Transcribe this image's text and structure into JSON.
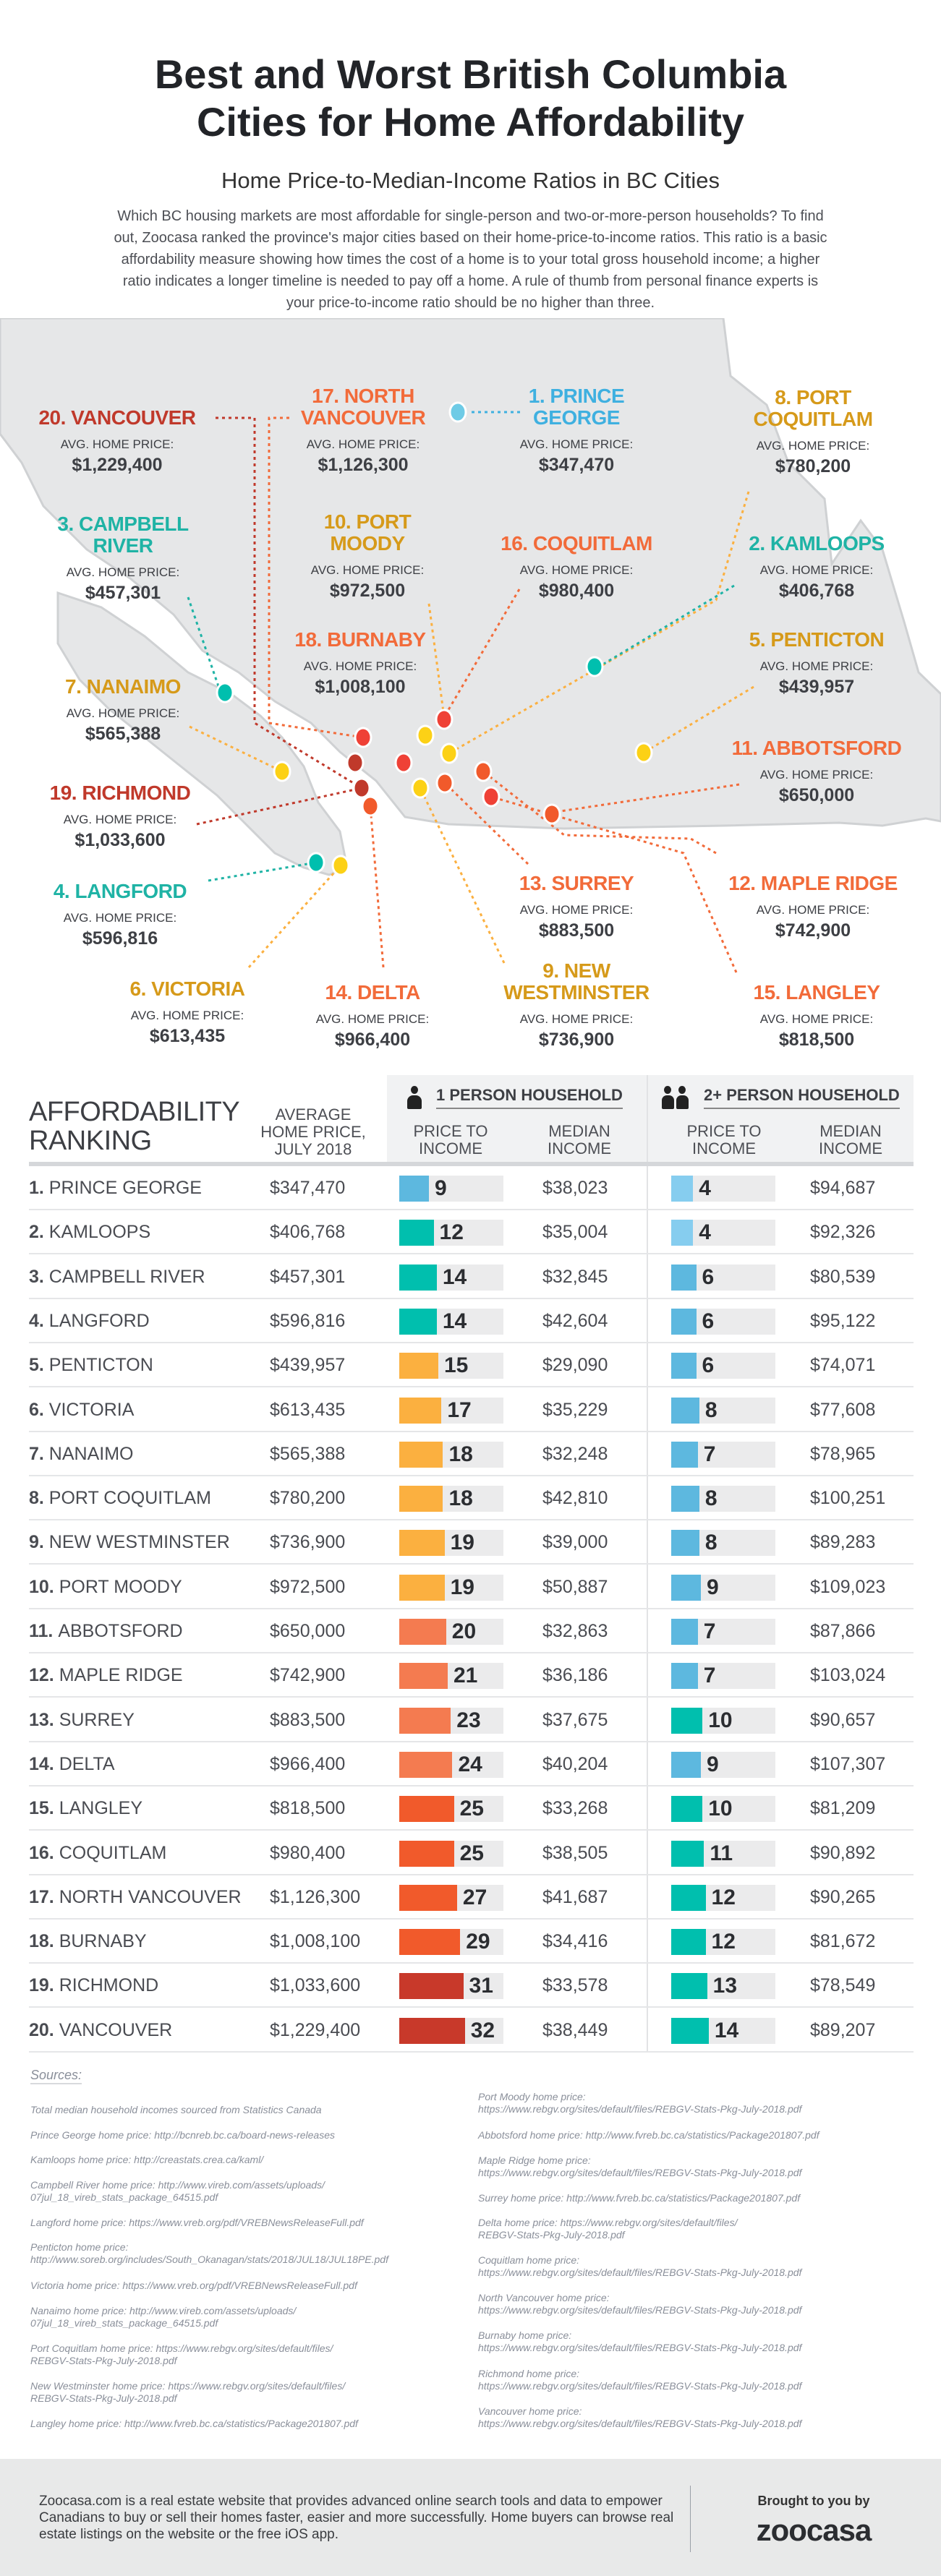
{
  "header": {
    "title_line1": "Best and Worst British Columbia",
    "title_line2": "Cities for Home Affordability",
    "subtitle": "Home Price-to-Median-Income Ratios in BC Cities",
    "intro": "Which BC housing markets are most affordable for single-person and two-or-more-person households? To find out, Zoocasa ranked the province's major cities based on their home-price-to-income ratios. This ratio is a basic affordability measure showing how times the cost of a home is to your total gross household income; a higher ratio indicates a longer timeline is needed to pay off a home. A rule of thumb from personal finance experts is your price-to-income ratio should be no higher than three."
  },
  "map": {
    "price_label": "AVG. HOME PRICE:",
    "cities": [
      {
        "name": [
          "20. VANCOUVER"
        ],
        "price": "$1,229,400",
        "color": "#c0392b"
      },
      {
        "name": [
          "17. NORTH",
          "VANCOUVER"
        ],
        "price": "$1,126,300",
        "color": "#f26b3a"
      },
      {
        "name": [
          "1. PRINCE",
          "GEORGE"
        ],
        "price": "$347,470",
        "color": "#3fb0e0"
      },
      {
        "name": [
          "8. PORT",
          "COQUITLAM"
        ],
        "price": "$780,200",
        "color": "#d69a1a"
      },
      {
        "name": [
          "3. CAMPBELL",
          "RIVER"
        ],
        "price": "$457,301",
        "color": "#1fb3a5"
      },
      {
        "name": [
          "10. PORT",
          "MOODY"
        ],
        "price": "$972,500",
        "color": "#d69a1a"
      },
      {
        "name": [
          "16. COQUITLAM"
        ],
        "price": "$980,400",
        "color": "#f26b3a"
      },
      {
        "name": [
          "2. KAMLOOPS"
        ],
        "price": "$406,768",
        "color": "#1fb3a5"
      },
      {
        "name": [
          "18. BURNABY"
        ],
        "price": "$1,008,100",
        "color": "#f26b3a"
      },
      {
        "name": [
          "5. PENTICTON"
        ],
        "price": "$439,957",
        "color": "#d69a1a"
      },
      {
        "name": [
          "7. NANAIMO"
        ],
        "price": "$565,388",
        "color": "#d69a1a"
      },
      {
        "name": [
          "11. ABBOTSFORD"
        ],
        "price": "$650,000",
        "color": "#f26b3a"
      },
      {
        "name": [
          "19. RICHMOND"
        ],
        "price": "$1,033,600",
        "color": "#c0392b"
      },
      {
        "name": [
          "4. LANGFORD"
        ],
        "price": "$596,816",
        "color": "#1fb3a5"
      },
      {
        "name": [
          "13. SURREY"
        ],
        "price": "$883,500",
        "color": "#f26b3a"
      },
      {
        "name": [
          "12. MAPLE RIDGE"
        ],
        "price": "$742,900",
        "color": "#f26b3a"
      },
      {
        "name": [
          "6. VICTORIA"
        ],
        "price": "$613,435",
        "color": "#d69a1a"
      },
      {
        "name": [
          "14. DELTA"
        ],
        "price": "$966,400",
        "color": "#f26b3a"
      },
      {
        "name": [
          "9. NEW",
          "WESTMINSTER"
        ],
        "price": "$736,900",
        "color": "#d69a1a"
      },
      {
        "name": [
          "15. LANGLEY"
        ],
        "price": "$818,500",
        "color": "#f26b3a"
      }
    ]
  },
  "chart_data": {
    "type": "table",
    "headers": {
      "ranking_line1": "AFFORDABILITY",
      "ranking_line2": "RANKING",
      "price_line1": "AVERAGE",
      "price_line2": "HOME PRICE,",
      "price_line3": "JULY 2018",
      "group1": "1 PERSON HOUSEHOLD",
      "group2": "2+ PERSON HOUSEHOLD",
      "ratio_line1": "PRICE TO",
      "ratio_line2": "INCOME",
      "median_line1": "MEDIAN",
      "median_line2": "INCOME"
    },
    "rows": [
      {
        "rank": "1.",
        "city": "PRINCE GEORGE",
        "price": "$347,470",
        "p1_ratio": 9,
        "p1_color": "#5db8df",
        "p1_income": "$38,023",
        "p2_ratio": 4,
        "p2_color": "#86cdef",
        "p2_income": "$94,687"
      },
      {
        "rank": "2.",
        "city": "KAMLOOPS",
        "price": "$406,768",
        "p1_ratio": 12,
        "p1_color": "#00bfae",
        "p1_income": "$35,004",
        "p2_ratio": 4,
        "p2_color": "#86cdef",
        "p2_income": "$92,326"
      },
      {
        "rank": "3.",
        "city": "CAMPBELL RIVER",
        "price": "$457,301",
        "p1_ratio": 14,
        "p1_color": "#00bfae",
        "p1_income": "$32,845",
        "p2_ratio": 6,
        "p2_color": "#5db8df",
        "p2_income": "$80,539"
      },
      {
        "rank": "4.",
        "city": "LANGFORD",
        "price": "$596,816",
        "p1_ratio": 14,
        "p1_color": "#00bfae",
        "p1_income": "$42,604",
        "p2_ratio": 6,
        "p2_color": "#5db8df",
        "p2_income": "$95,122"
      },
      {
        "rank": "5.",
        "city": "PENTICTON",
        "price": "$439,957",
        "p1_ratio": 15,
        "p1_color": "#fbb040",
        "p1_income": "$29,090",
        "p2_ratio": 6,
        "p2_color": "#5db8df",
        "p2_income": "$74,071"
      },
      {
        "rank": "6.",
        "city": "VICTORIA",
        "price": "$613,435",
        "p1_ratio": 17,
        "p1_color": "#fbb040",
        "p1_income": "$35,229",
        "p2_ratio": 8,
        "p2_color": "#5db8df",
        "p2_income": "$77,608"
      },
      {
        "rank": "7.",
        "city": "NANAIMO",
        "price": "$565,388",
        "p1_ratio": 18,
        "p1_color": "#fbb040",
        "p1_income": "$32,248",
        "p2_ratio": 7,
        "p2_color": "#5db8df",
        "p2_income": "$78,965"
      },
      {
        "rank": "8.",
        "city": "PORT COQUITLAM",
        "price": "$780,200",
        "p1_ratio": 18,
        "p1_color": "#fbb040",
        "p1_income": "$42,810",
        "p2_ratio": 8,
        "p2_color": "#5db8df",
        "p2_income": "$100,251"
      },
      {
        "rank": "9.",
        "city": "NEW WESTMINSTER",
        "price": "$736,900",
        "p1_ratio": 19,
        "p1_color": "#fbb040",
        "p1_income": "$39,000",
        "p2_ratio": 8,
        "p2_color": "#5db8df",
        "p2_income": "$89,283"
      },
      {
        "rank": "10.",
        "city": "PORT MOODY",
        "price": "$972,500",
        "p1_ratio": 19,
        "p1_color": "#fbb040",
        "p1_income": "$50,887",
        "p2_ratio": 9,
        "p2_color": "#5db8df",
        "p2_income": "$109,023"
      },
      {
        "rank": "11.",
        "city": "ABBOTSFORD",
        "price": "$650,000",
        "p1_ratio": 20,
        "p1_color": "#f47b50",
        "p1_income": "$32,863",
        "p2_ratio": 7,
        "p2_color": "#5db8df",
        "p2_income": "$87,866"
      },
      {
        "rank": "12.",
        "city": "MAPLE RIDGE",
        "price": "$742,900",
        "p1_ratio": 21,
        "p1_color": "#f47b50",
        "p1_income": "$36,186",
        "p2_ratio": 7,
        "p2_color": "#5db8df",
        "p2_income": "$103,024"
      },
      {
        "rank": "13.",
        "city": "SURREY",
        "price": "$883,500",
        "p1_ratio": 23,
        "p1_color": "#f47b50",
        "p1_income": "$37,675",
        "p2_ratio": 10,
        "p2_color": "#00bfae",
        "p2_income": "$90,657"
      },
      {
        "rank": "14.",
        "city": "DELTA",
        "price": "$966,400",
        "p1_ratio": 24,
        "p1_color": "#f47b50",
        "p1_income": "$40,204",
        "p2_ratio": 9,
        "p2_color": "#5db8df",
        "p2_income": "$107,307"
      },
      {
        "rank": "15.",
        "city": "LANGLEY",
        "price": "$818,500",
        "p1_ratio": 25,
        "p1_color": "#f15a2b",
        "p1_income": "$33,268",
        "p2_ratio": 10,
        "p2_color": "#00bfae",
        "p2_income": "$81,209"
      },
      {
        "rank": "16.",
        "city": "COQUITLAM",
        "price": "$980,400",
        "p1_ratio": 25,
        "p1_color": "#f15a2b",
        "p1_income": "$38,505",
        "p2_ratio": 11,
        "p2_color": "#00bfae",
        "p2_income": "$90,892"
      },
      {
        "rank": "17.",
        "city": "NORTH VANCOUVER",
        "price": "$1,126,300",
        "p1_ratio": 27,
        "p1_color": "#f15a2b",
        "p1_income": "$41,687",
        "p2_ratio": 12,
        "p2_color": "#00bfae",
        "p2_income": "$90,265"
      },
      {
        "rank": "18.",
        "city": "BURNABY",
        "price": "$1,008,100",
        "p1_ratio": 29,
        "p1_color": "#f15a2b",
        "p1_income": "$34,416",
        "p2_ratio": 12,
        "p2_color": "#00bfae",
        "p2_income": "$81,672"
      },
      {
        "rank": "19.",
        "city": "RICHMOND",
        "price": "$1,033,600",
        "p1_ratio": 31,
        "p1_color": "#c8392a",
        "p1_income": "$33,578",
        "p2_ratio": 13,
        "p2_color": "#00bfae",
        "p2_income": "$78,549"
      },
      {
        "rank": "20.",
        "city": "VANCOUVER",
        "price": "$1,229,400",
        "p1_ratio": 32,
        "p1_color": "#c8392a",
        "p1_income": "$38,449",
        "p2_ratio": 14,
        "p2_color": "#00bfae",
        "p2_income": "$89,207"
      }
    ]
  },
  "sources": {
    "title": "Sources:",
    "left": [
      [
        "Total median household incomes sourced from Statistics Canada"
      ],
      [
        "Prince George home price: http://bcnreb.bc.ca/board-news-releases"
      ],
      [
        "Kamloops home price: http://creastats.crea.ca/kaml/"
      ],
      [
        "Campbell River home price: http://www.vireb.com/assets/uploads/",
        "07jul_18_vireb_stats_package_64515.pdf"
      ],
      [
        "Langford home price: https://www.vreb.org/pdf/VREBNewsReleaseFull.pdf"
      ],
      [
        "Penticton home price:",
        "http://www.soreb.org/includes/South_Okanagan/stats/2018/JUL18/JUL18PE.pdf"
      ],
      [
        "Victoria home price: https://www.vreb.org/pdf/VREBNewsReleaseFull.pdf"
      ],
      [
        "Nanaimo home price: http://www.vireb.com/assets/uploads/",
        "07jul_18_vireb_stats_package_64515.pdf"
      ],
      [
        "Port Coquitlam home price: https://www.rebgv.org/sites/default/files/",
        "REBGV-Stats-Pkg-July-2018.pdf"
      ],
      [
        "New Westminster home price: https://www.rebgv.org/sites/default/files/",
        "REBGV-Stats-Pkg-July-2018.pdf"
      ],
      [
        "Langley home price: http://www.fvreb.bc.ca/statistics/Package201807.pdf"
      ]
    ],
    "right": [
      [
        "Port Moody home price:",
        "https://www.rebgv.org/sites/default/files/REBGV-Stats-Pkg-July-2018.pdf"
      ],
      [
        "Abbotsford home price: http://www.fvreb.bc.ca/statistics/Package201807.pdf"
      ],
      [
        "Maple Ridge home price:",
        "https://www.rebgv.org/sites/default/files/REBGV-Stats-Pkg-July-2018.pdf"
      ],
      [
        "Surrey home price: http://www.fvreb.bc.ca/statistics/Package201807.pdf"
      ],
      [
        "Delta home price: https://www.rebgv.org/sites/default/files/",
        "REBGV-Stats-Pkg-July-2018.pdf"
      ],
      [
        "Coquitlam home price:",
        "https://www.rebgv.org/sites/default/files/REBGV-Stats-Pkg-July-2018.pdf"
      ],
      [
        "North Vancouver home price:",
        "https://www.rebgv.org/sites/default/files/REBGV-Stats-Pkg-July-2018.pdf"
      ],
      [
        "Burnaby home price:",
        "https://www.rebgv.org/sites/default/files/REBGV-Stats-Pkg-July-2018.pdf"
      ],
      [
        "Richmond home price:",
        "https://www.rebgv.org/sites/default/files/REBGV-Stats-Pkg-July-2018.pdf"
      ],
      [
        "Vancouver home price:",
        "https://www.rebgv.org/sites/default/files/REBGV-Stats-Pkg-July-2018.pdf"
      ]
    ]
  },
  "footer": {
    "text": "Zoocasa.com is a real estate website that provides advanced online search tools and data to empower Canadians to buy or sell their homes faster, easier and more successfully. Home buyers can browse real estate listings on the website or the free iOS app.",
    "brought_by": "Brought to you by",
    "logo": "zoocasa"
  }
}
